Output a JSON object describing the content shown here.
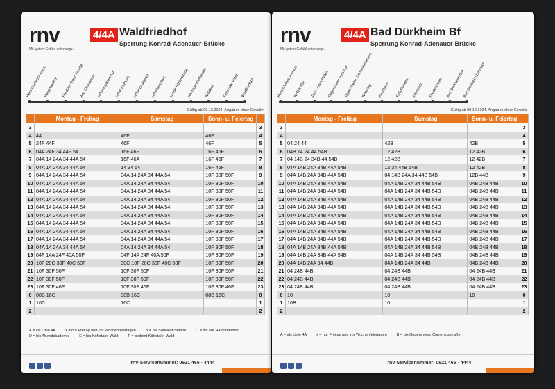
{
  "panels": [
    {
      "brand": "rnv",
      "tagline": "Mit gutem Gefühl unterwegs.",
      "line": "4/4A",
      "destination": "Waldfriedhof",
      "notice": "Sperrung Konrad-Adenauer-Brücke",
      "stops": [
        "Heinrich-Pesch-Haus",
        "Hauptfriedhof",
        "Friedrich-Ebert-Straße",
        "Alte Sternwarte",
        "MA Hauptbahnhof",
        "MA Kunsthalle",
        "MA Paradeplatz",
        "MA Marktplatz",
        "Lange Rötterstraße",
        "Herzogenriedstraße",
        "Waldhof",
        "Käfertaler Wald",
        "Waldfriedhof"
      ],
      "validity": "Gültig ab 09.12.2024. Angaben ohne Gewähr",
      "days": [
        "Montag - Freitag",
        "Samstag",
        "Sonn- u. Feiertag"
      ],
      "rows": [
        [
          "3",
          "",
          "",
          ""
        ],
        [
          "4",
          "44",
          "46F",
          "46F"
        ],
        [
          "5",
          "24F 44F",
          "46F",
          "46F"
        ],
        [
          "6",
          "04A 24F 34 44F 54",
          "16F 46F",
          "16F 46F"
        ],
        [
          "7",
          "04A 14 24A 34 44A 54",
          "16F 46A",
          "16F 46F"
        ],
        [
          "8",
          "04A 14 24A 34 44A 54",
          "14 34 54",
          "16F 46F"
        ],
        [
          "9",
          "04A 14 24A 34 44A 54",
          "04A 14 24A 34 44A 54",
          "10F 30F 50F"
        ],
        [
          "10",
          "04A 14 24A 34 44A 54",
          "04A 14 24A 34 44A 54",
          "10F 30F 50F"
        ],
        [
          "11",
          "04A 14 24A 34 44A 54",
          "04A 14 24A 34 44A 54",
          "10F 30F 50F"
        ],
        [
          "12",
          "04A 14 24A 34 44A 54",
          "04A 14 24A 34 44A 54",
          "10F 30F 50F"
        ],
        [
          "13",
          "04A 14 24A 34 44A 54",
          "04A 14 24A 34 44A 54",
          "10F 30F 50F"
        ],
        [
          "14",
          "04A 14 24A 34 44A 54",
          "04A 14 24A 34 44A 54",
          "10F 30F 50F"
        ],
        [
          "15",
          "04A 14 24A 34 44A 54",
          "04A 14 24A 34 44A 54",
          "10F 30F 50F"
        ],
        [
          "16",
          "04A 14 24A 34 44A 54",
          "04A 14 24A 34 44A 54",
          "10F 30F 50F"
        ],
        [
          "17",
          "04A 14 24A 34 44A 54",
          "04A 14 24A 34 44A 54",
          "10F 30F 50F"
        ],
        [
          "18",
          "04A 14 24A 34 44A 54",
          "04A 14 24A 34 44A 54",
          "10F 30F 50F"
        ],
        [
          "19",
          "04F 14A 24F 40A 50F",
          "04F 14A 24F 40A 50F",
          "10F 30F 50F"
        ],
        [
          "20",
          "10F 20C 30F 40C 50F",
          "00C 10F 20C 30F 40C 50F",
          "10F 30F 50F"
        ],
        [
          "21",
          "10F 30F 50F",
          "10F 30F 50F",
          "10F 30F 50F"
        ],
        [
          "22",
          "10F 30F 50F",
          "10F 30F 50F",
          "10F 30F 50F"
        ],
        [
          "23",
          "10F 30F 46F",
          "10F 30F 46F",
          "10F 30F 46F"
        ],
        [
          "0",
          "08B 16C",
          "08B 16C",
          "08B 16C"
        ],
        [
          "1",
          "16C",
          "16C",
          ""
        ],
        [
          "2",
          "",
          "",
          ""
        ]
      ],
      "notes": [
        "A = als Linie 4A",
        "x = nur Freitag und vor Wochenfeiertagen",
        "B = bis Südwest-Station",
        "C = bis MA Hauptbahnhof",
        "D = bis Abendakademie",
        "E = bis Käfertaler Wald",
        "F = bedient Käfertaler Wald"
      ],
      "service": "rnv-Servicenummer: 0621 465 - 4444"
    },
    {
      "brand": "rnv",
      "tagline": "Mit gutem Gefühl unterwegs.",
      "line": "4/4A",
      "destination": "Bad Dürkheim Bf",
      "notice": "Sperrung Konrad-Adenauer-Brücke",
      "stops": [
        "Heinrich-Pesch-Haus",
        "Wollstraße",
        "Zum Guten Hirten",
        "Oggersheim Bahnhof",
        "Oggersheim, Comeniusstraße",
        "Westring",
        "Ruchheim",
        "Fußgönheim",
        "Ellerstadt",
        "Friedelsheim",
        "Bad Dürkheim Ost",
        "Bad Dürkheim Bahnhof"
      ],
      "validity": "Gültig ab 09.12.2024. Angaben ohne Gewähr",
      "days": [
        "Montag - Freitag",
        "Samstag",
        "Sonn- u. Feiertag"
      ],
      "rows": [
        [
          "3",
          "",
          "",
          ""
        ],
        [
          "4",
          "",
          "",
          ""
        ],
        [
          "5",
          "04 24 44",
          "42B",
          "42B"
        ],
        [
          "6",
          "04B 14 24 44 54B",
          "12 42B",
          "12 42B"
        ],
        [
          "7",
          "04 14B 24 34B 44 54B",
          "12 42B",
          "12 42B"
        ],
        [
          "8",
          "04A 14B 24A 34B 44A 54B",
          "12 34 44B 54B",
          "12 42B"
        ],
        [
          "9",
          "04A 14B 24A 34B 44A 54B",
          "04 14B 24A 34 44B 54B",
          "12B 44B"
        ],
        [
          "10",
          "04A 14B 24A 34B 44A 54B",
          "04A 14B 24A 34 44B 54B",
          "04B 24B 44B"
        ],
        [
          "11",
          "04A 14B 24A 34B 44A 54B",
          "04A 14B 24A 34 44B 54B",
          "04B 24B 44B"
        ],
        [
          "12",
          "04A 14B 24A 34B 44A 54B",
          "04A 14B 24A 34 44B 54B",
          "04B 24B 44B"
        ],
        [
          "13",
          "04A 14B 24A 34B 44A 54B",
          "04A 14B 24A 34 44B 54B",
          "04B 24B 44B"
        ],
        [
          "14",
          "04A 14B 24A 34B 44A 54B",
          "04A 14B 24A 34 44B 54B",
          "04B 24B 44B"
        ],
        [
          "15",
          "04A 14B 24A 34B 44A 54B",
          "04A 14B 24A 34 44B 54B",
          "04B 24B 44B"
        ],
        [
          "16",
          "04A 14B 24A 34B 44A 54B",
          "04A 14B 24A 34 44B 54B",
          "04B 24B 44B"
        ],
        [
          "17",
          "04A 14B 24A 34B 44A 54B",
          "04A 14B 24A 34 44B 54B",
          "04B 24B 44B"
        ],
        [
          "18",
          "04A 14B 24A 34B 44A 54B",
          "04A 14B 24A 34 44B 54B",
          "04B 24B 44B"
        ],
        [
          "19",
          "04A 14B 24A 34B 44A 54B",
          "04A 14B 24A 34 44B 54B",
          "04B 24B 44B"
        ],
        [
          "20",
          "04A 14B 24A 34 44B",
          "04A 14B 24A 34 44B",
          "04B 24B 44B"
        ],
        [
          "21",
          "04 24B 44B",
          "04 24B 44B",
          "04 24B 44B"
        ],
        [
          "22",
          "04 24B 44B",
          "04 24B 44B",
          "04 24B 44B"
        ],
        [
          "23",
          "04 24B 44B",
          "04 24B 44B",
          "04 24B 44B"
        ],
        [
          "0",
          "10",
          "10",
          "10"
        ],
        [
          "1",
          "10B",
          "10",
          ""
        ],
        [
          "2",
          "",
          "",
          ""
        ]
      ],
      "notes": [
        "A = als Linie 4A",
        "x = nur Freitag und vor Wochenfeiertagen",
        "B = bis Oggersheim, Comeniusstraße"
      ],
      "service": "rnv-Servicenummer: 0621 465 - 4444"
    }
  ]
}
